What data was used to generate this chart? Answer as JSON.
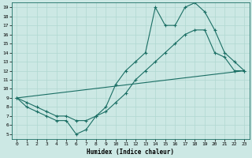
{
  "xlabel": "Humidex (Indice chaleur)",
  "bg_color": "#cce8e4",
  "line_color": "#1a6e64",
  "grid_color": "#b0d8d0",
  "xlim": [
    -0.5,
    23.5
  ],
  "ylim": [
    4.5,
    19.5
  ],
  "xticks": [
    0,
    1,
    2,
    3,
    4,
    5,
    6,
    7,
    8,
    9,
    10,
    11,
    12,
    13,
    14,
    15,
    16,
    17,
    18,
    19,
    20,
    21,
    22,
    23
  ],
  "yticks": [
    5,
    6,
    7,
    8,
    9,
    10,
    11,
    12,
    13,
    14,
    15,
    16,
    17,
    18,
    19
  ],
  "line1_x": [
    0,
    1,
    2,
    3,
    4,
    5,
    6,
    7,
    8,
    9,
    10,
    11,
    12,
    13,
    14,
    15,
    16,
    17,
    18,
    19,
    20,
    21,
    22,
    23
  ],
  "line1_y": [
    9,
    8,
    7.5,
    7,
    6.5,
    6.5,
    5,
    5.5,
    7,
    8,
    10.5,
    12,
    13,
    14,
    19,
    17,
    17,
    19,
    19.5,
    18.5,
    16.5,
    14,
    13,
    12
  ],
  "line2_x": [
    0,
    1,
    2,
    3,
    4,
    5,
    6,
    7,
    8,
    9,
    10,
    11,
    12,
    13,
    14,
    15,
    16,
    17,
    18,
    19,
    20,
    21,
    22,
    23
  ],
  "line2_y": [
    9,
    8.5,
    8,
    7.5,
    7,
    7,
    6.5,
    6.5,
    7,
    7.5,
    8.5,
    9.5,
    11,
    12,
    13,
    14,
    15,
    16,
    16.5,
    16.5,
    14,
    13.5,
    12,
    12
  ],
  "line3_x": [
    0,
    23
  ],
  "line3_y": [
    9,
    12
  ]
}
